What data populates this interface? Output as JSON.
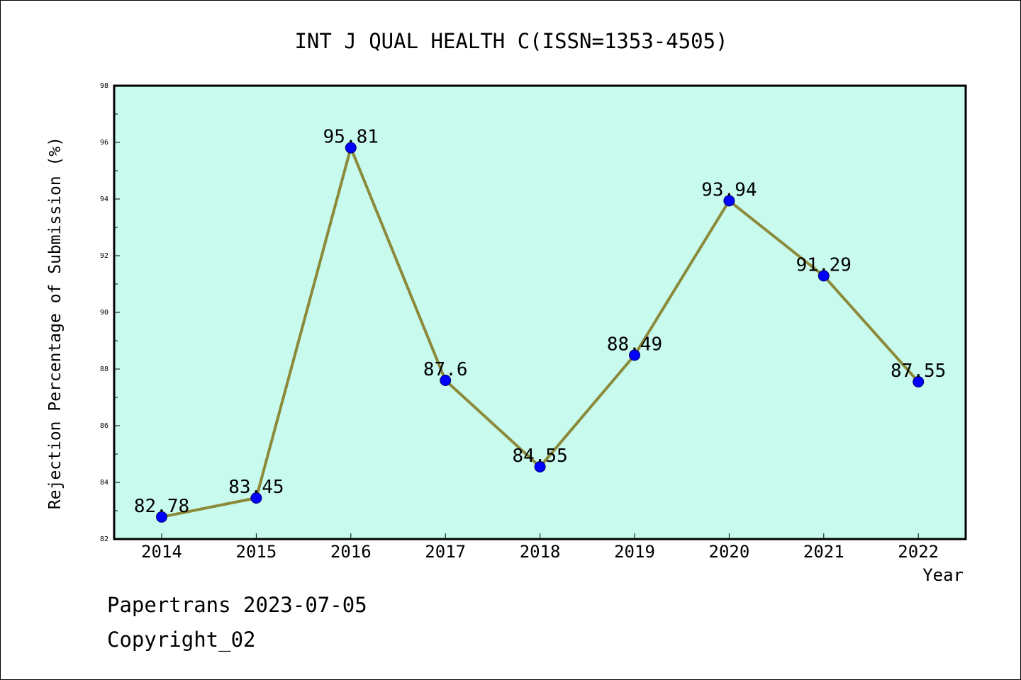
{
  "chart_data": {
    "type": "line",
    "title": "INT J QUAL HEALTH C(ISSN=1353-4505)",
    "xlabel": "Year",
    "ylabel": "Rejection Percentage of Submission (%)",
    "categories": [
      "2014",
      "2015",
      "2016",
      "2017",
      "2018",
      "2019",
      "2020",
      "2021",
      "2022"
    ],
    "values": [
      82.78,
      83.45,
      95.81,
      87.6,
      84.55,
      88.49,
      93.94,
      91.29,
      87.55
    ],
    "data_labels": [
      "82.78",
      "83.45",
      "95.81",
      "87.6",
      "84.55",
      "88.49",
      "93.94",
      "91.29",
      "87.55"
    ],
    "ylim": [
      82,
      98
    ],
    "yticks": [
      "82",
      "84",
      "86",
      "88",
      "90",
      "92",
      "94",
      "96",
      "98"
    ],
    "grid": false,
    "colors": {
      "plot_background": "#c8fbee",
      "line": "#8b8a3a",
      "marker": "#0000ff"
    }
  },
  "footer": {
    "line1": "Papertrans 2023-07-05",
    "line2": "Copyright_02"
  }
}
